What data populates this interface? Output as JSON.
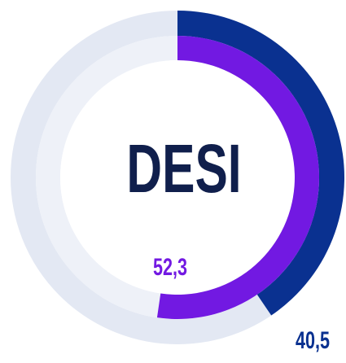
{
  "chart_data": {
    "type": "radialBar",
    "title": "DESI",
    "ylim": [
      0,
      100
    ],
    "series": [
      {
        "name": null,
        "color": "#0a3190",
        "track": "#e3e8f3",
        "values": [
          40.5
        ],
        "value_labels": [
          "40,5"
        ]
      },
      {
        "name": null,
        "color": "#7219e2",
        "track": "#eef1f8",
        "values": [
          52.3
        ],
        "value_labels": [
          "52,3"
        ]
      }
    ]
  }
}
